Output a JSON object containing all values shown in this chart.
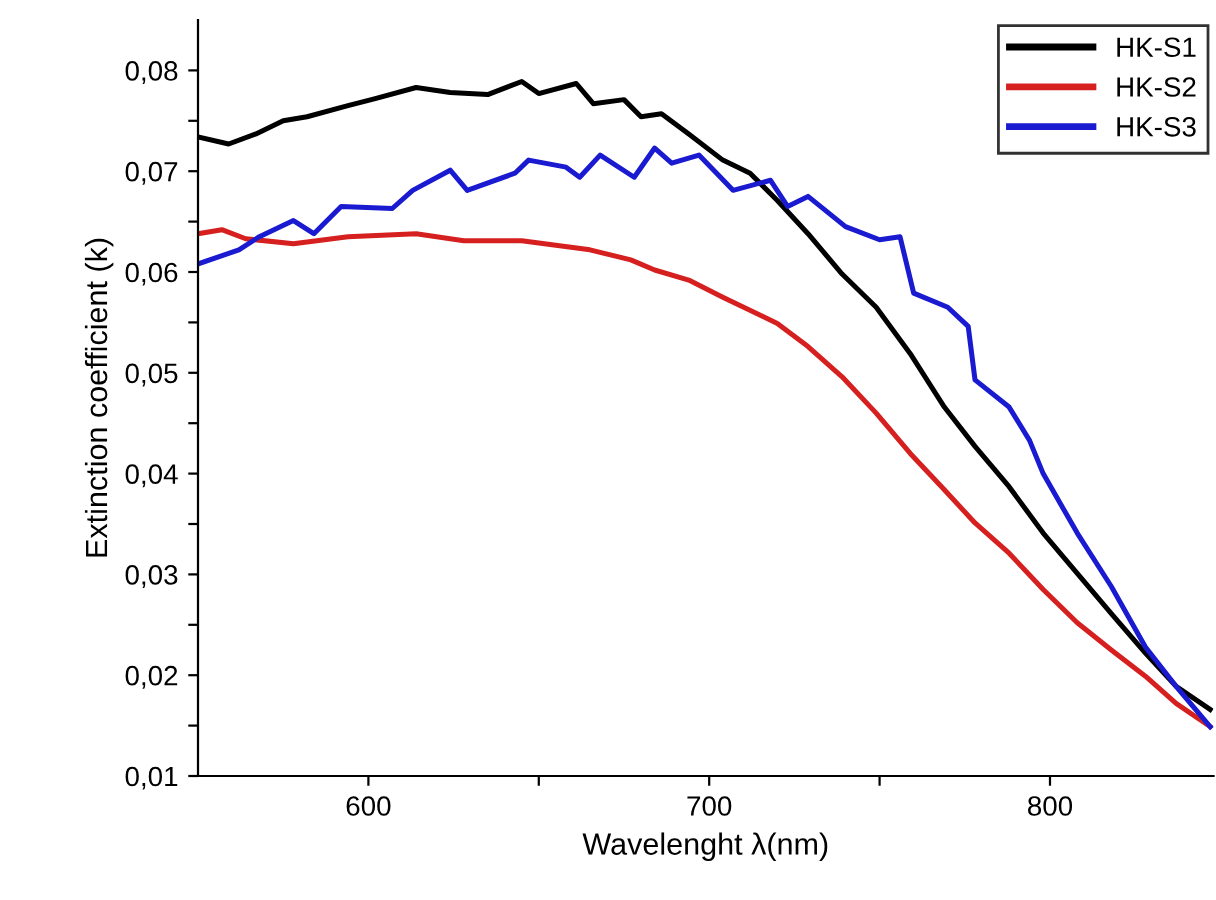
{
  "chart_data": {
    "type": "line",
    "xlabel": "Wavelenght λ(nm)",
    "ylabel": "Extinction coefficient (k)",
    "xlim": [
      550,
      848
    ],
    "ylim": [
      0.01,
      0.085
    ],
    "xticks": [
      600,
      {
        "value": 650,
        "label": null
      },
      700,
      {
        "value": 750,
        "label": null
      },
      800
    ],
    "yticks": [
      {
        "value": 0.01,
        "label": "0,01"
      },
      {
        "value": 0.015,
        "label": null
      },
      {
        "value": 0.02,
        "label": "0,02"
      },
      {
        "value": 0.025,
        "label": null
      },
      {
        "value": 0.03,
        "label": "0,03"
      },
      {
        "value": 0.035,
        "label": null
      },
      {
        "value": 0.04,
        "label": "0,04"
      },
      {
        "value": 0.045,
        "label": null
      },
      {
        "value": 0.05,
        "label": "0,05"
      },
      {
        "value": 0.055,
        "label": null
      },
      {
        "value": 0.06,
        "label": "0,06"
      },
      {
        "value": 0.065,
        "label": null
      },
      {
        "value": 0.07,
        "label": "0,07"
      },
      {
        "value": 0.075,
        "label": null
      },
      {
        "value": 0.08,
        "label": "0,08"
      }
    ],
    "grid": false,
    "legend": "top right",
    "marker": "none",
    "line_style": "solid",
    "series": [
      {
        "name": "HK-S1",
        "color": "#000000",
        "x": [
          550,
          559,
          567,
          575,
          582,
          594,
          602,
          614,
          624,
          635,
          645,
          650,
          661,
          666,
          675,
          680,
          686,
          694,
          704,
          712,
          720,
          729,
          739,
          749,
          759,
          769,
          778,
          788,
          798,
          808,
          818,
          828,
          837,
          847
        ],
        "values": [
          0.0734,
          0.0727,
          0.0737,
          0.075,
          0.0754,
          0.0765,
          0.0772,
          0.0783,
          0.0778,
          0.0776,
          0.0789,
          0.0777,
          0.0787,
          0.0767,
          0.0771,
          0.0754,
          0.0757,
          0.0737,
          0.0711,
          0.0698,
          0.0671,
          0.0638,
          0.0598,
          0.0565,
          0.0519,
          0.0466,
          0.0427,
          0.0387,
          0.0341,
          0.0301,
          0.0261,
          0.0222,
          0.0189,
          0.0166
        ]
      },
      {
        "name": "HK-S2",
        "color": "#d62020",
        "x": [
          550,
          557,
          564,
          578,
          594,
          614,
          628,
          645,
          665,
          677,
          684,
          694,
          704,
          720,
          729,
          739,
          749,
          759,
          769,
          778,
          788,
          798,
          808,
          818,
          828,
          837,
          847
        ],
        "values": [
          0.0638,
          0.0642,
          0.0633,
          0.0628,
          0.0635,
          0.0638,
          0.0631,
          0.0631,
          0.0622,
          0.0612,
          0.0602,
          0.0592,
          0.0575,
          0.0549,
          0.0526,
          0.0496,
          0.046,
          0.042,
          0.0384,
          0.0351,
          0.0321,
          0.0285,
          0.0252,
          0.0225,
          0.0199,
          0.0172,
          0.0149
        ]
      },
      {
        "name": "HK-S3",
        "color": "#1a1ad0",
        "x": [
          550,
          562,
          568,
          578,
          584,
          592,
          607,
          613,
          624,
          629,
          643,
          647,
          658,
          662,
          668,
          678,
          684,
          689,
          697,
          707,
          718,
          723,
          729,
          740,
          750,
          756,
          760,
          770,
          776,
          778,
          788,
          794,
          798,
          808,
          818,
          828,
          837,
          847
        ],
        "values": [
          0.0608,
          0.0622,
          0.0635,
          0.0651,
          0.0638,
          0.0665,
          0.0663,
          0.0681,
          0.0701,
          0.0681,
          0.0698,
          0.0711,
          0.0704,
          0.0694,
          0.0716,
          0.0694,
          0.0723,
          0.0708,
          0.0716,
          0.0681,
          0.0691,
          0.0665,
          0.0675,
          0.0645,
          0.0632,
          0.0635,
          0.0579,
          0.0565,
          0.0546,
          0.0493,
          0.0466,
          0.0433,
          0.04,
          0.0341,
          0.0288,
          0.0228,
          0.0189,
          0.0149
        ]
      }
    ]
  }
}
